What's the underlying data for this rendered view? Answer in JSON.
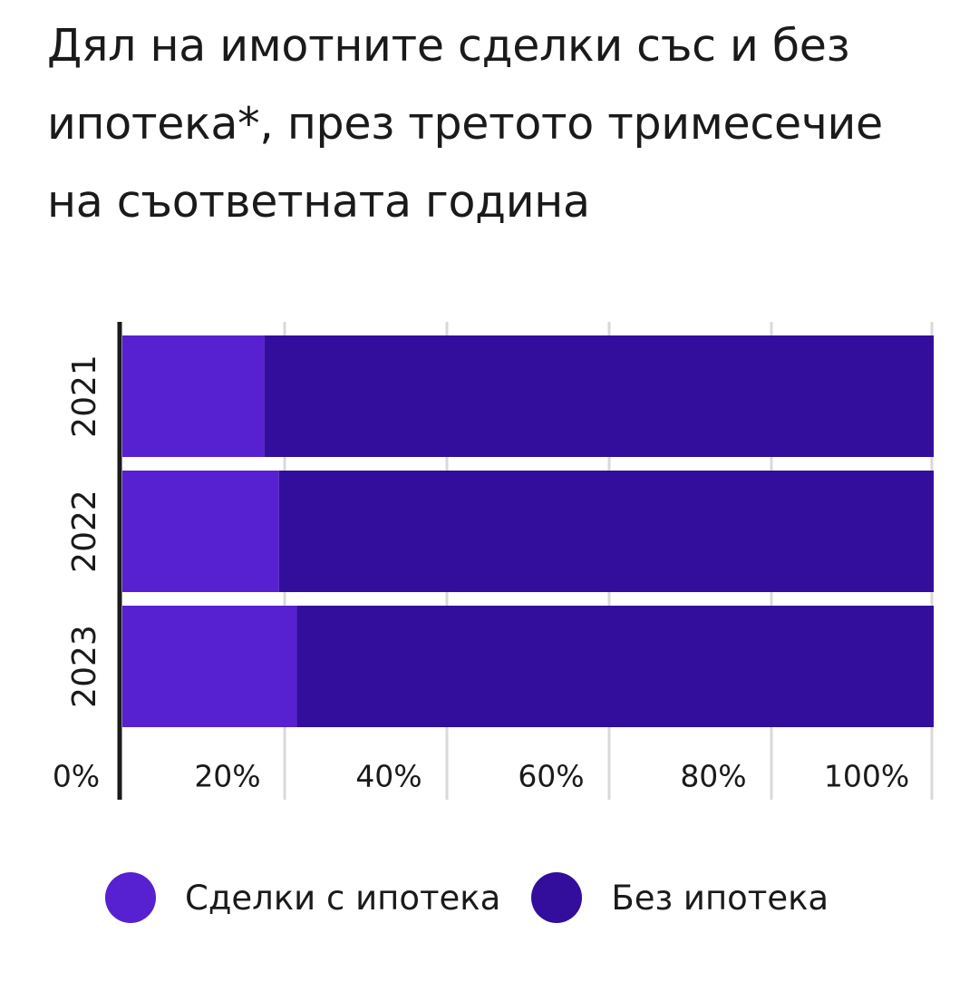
{
  "title": "Дял на имотните сделки със и без ипотека*, през третото тримесечие на съответната година",
  "colors": {
    "with_mortgage": "#5720d0",
    "without_mortgage": "#330d9c",
    "axis": "#1a1a1a",
    "grid": "#d9d9d9"
  },
  "chart_data": {
    "type": "bar",
    "orientation": "horizontal",
    "stacked": true,
    "categories": [
      "2021",
      "2022",
      "2023"
    ],
    "series": [
      {
        "name": "Сделки с ипотека",
        "values": [
          17.5,
          19.3,
          21.5
        ]
      },
      {
        "name": "Без ипотека",
        "values": [
          82.5,
          80.7,
          78.5
        ]
      }
    ],
    "xlim": [
      0,
      100
    ],
    "x_ticks": [
      "0%",
      "20%",
      "40%",
      "60%",
      "80%",
      "100%"
    ],
    "grid": true,
    "legend_position": "bottom"
  },
  "legend": [
    {
      "label": "Сделки с ипотека",
      "icon": "circle"
    },
    {
      "label": "Без ипотека",
      "icon": "circle"
    }
  ]
}
